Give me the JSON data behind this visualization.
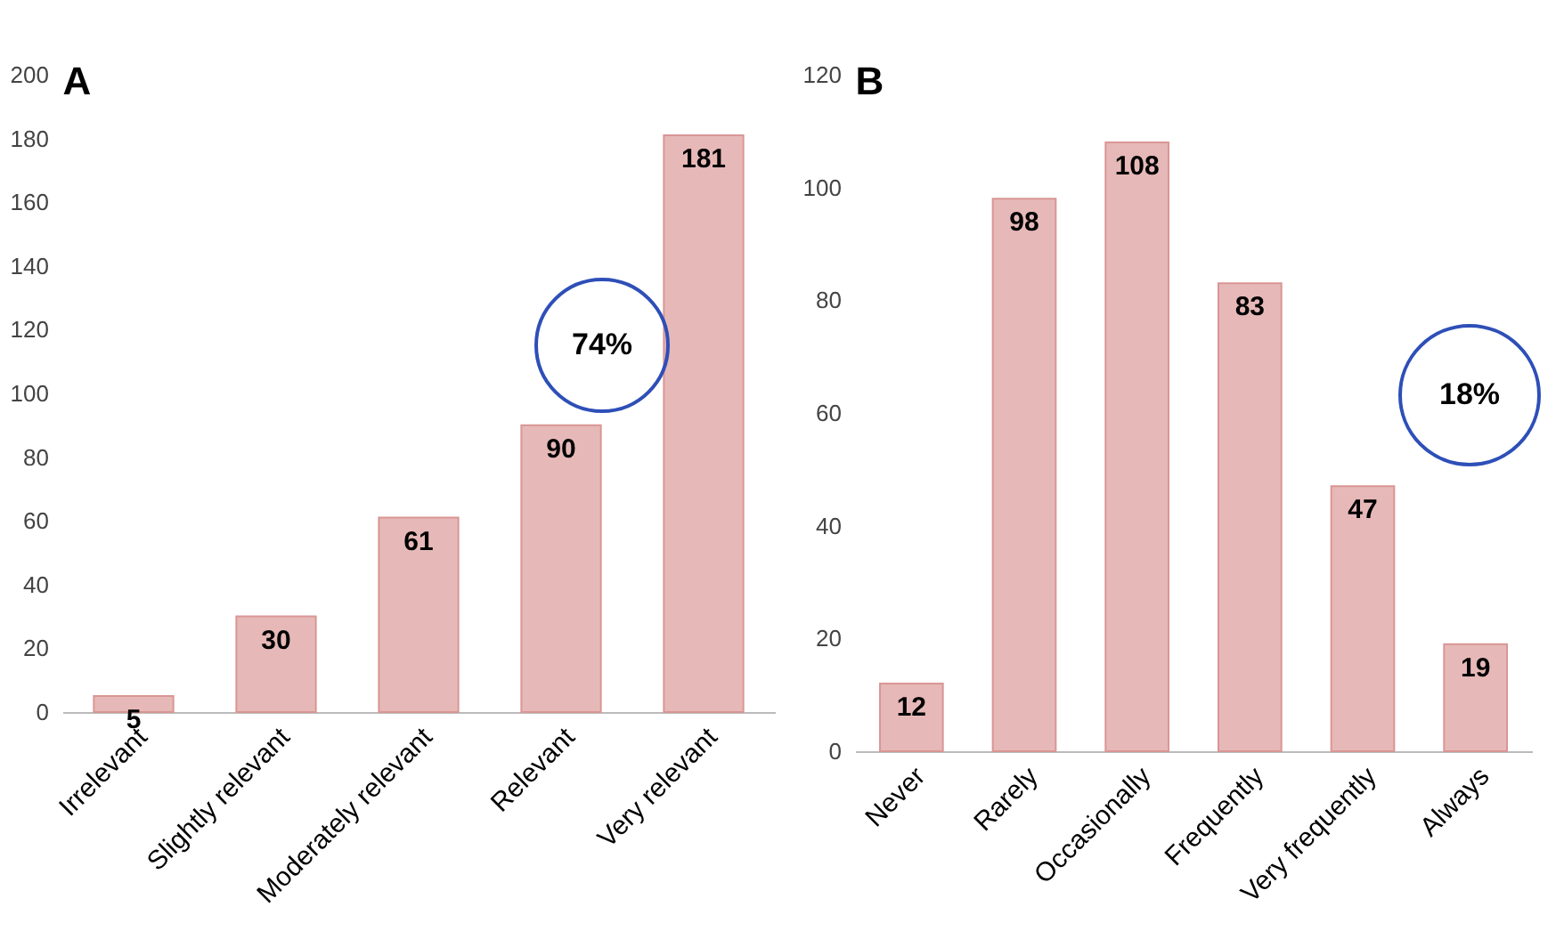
{
  "chart_data": [
    {
      "type": "bar",
      "title": "A",
      "categories": [
        "Irrelevant",
        "Slightly relevant",
        "Moderately relevant",
        "Relevant",
        "Very relevant"
      ],
      "values": [
        5,
        30,
        61,
        90,
        181
      ],
      "color": "#e6b9b8",
      "ylim": [
        0,
        200
      ],
      "yticks": [
        0,
        20,
        40,
        60,
        80,
        100,
        120,
        140,
        160,
        180,
        200
      ],
      "grid": false,
      "data_labels": true,
      "annotations": [
        "74%"
      ]
    },
    {
      "type": "bar",
      "title": "B",
      "categories": [
        "Never",
        "Rarely",
        "Occasionally",
        "Frequently",
        "Very frequently",
        "Always"
      ],
      "values": [
        12,
        98,
        108,
        83,
        47,
        19
      ],
      "color": "#e6b9b8",
      "ylim": [
        0,
        120
      ],
      "yticks": [
        0,
        20,
        40,
        60,
        80,
        100,
        120
      ],
      "grid": false,
      "data_labels": true,
      "annotations": [
        "18%"
      ]
    }
  ]
}
